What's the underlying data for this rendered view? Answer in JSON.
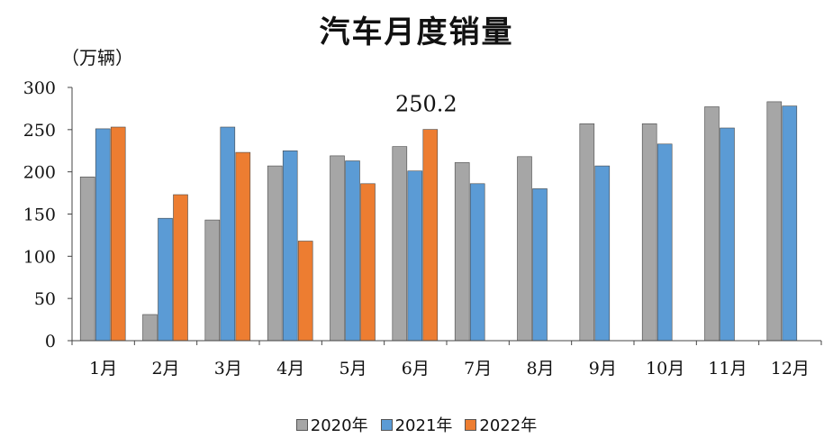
{
  "chart_data": {
    "type": "bar",
    "title": "汽车月度销量",
    "ylabel": "（万辆）",
    "xlabel": "",
    "categories": [
      "1月",
      "2月",
      "3月",
      "4月",
      "5月",
      "6月",
      "7月",
      "8月",
      "9月",
      "10月",
      "11月",
      "12月"
    ],
    "ylim": [
      0,
      300
    ],
    "yticks": [
      0,
      50,
      100,
      150,
      200,
      250,
      300
    ],
    "grid": false,
    "legend_position": "bottom",
    "series": [
      {
        "name": "2020年",
        "color": "#a6a6a6",
        "values": [
          194,
          31,
          143,
          207,
          219,
          230,
          211,
          218,
          257,
          257,
          277,
          283
        ]
      },
      {
        "name": "2021年",
        "color": "#5b9bd5",
        "values": [
          251,
          145,
          253,
          225,
          213,
          201,
          186,
          180,
          207,
          233,
          252,
          278
        ]
      },
      {
        "name": "2022年",
        "color": "#ed7d31",
        "values": [
          253,
          173,
          223,
          118,
          186,
          250.2,
          null,
          null,
          null,
          null,
          null,
          null
        ]
      }
    ],
    "annotations": [
      {
        "text": "250.2",
        "category": "6月",
        "series": "2022年"
      }
    ]
  }
}
